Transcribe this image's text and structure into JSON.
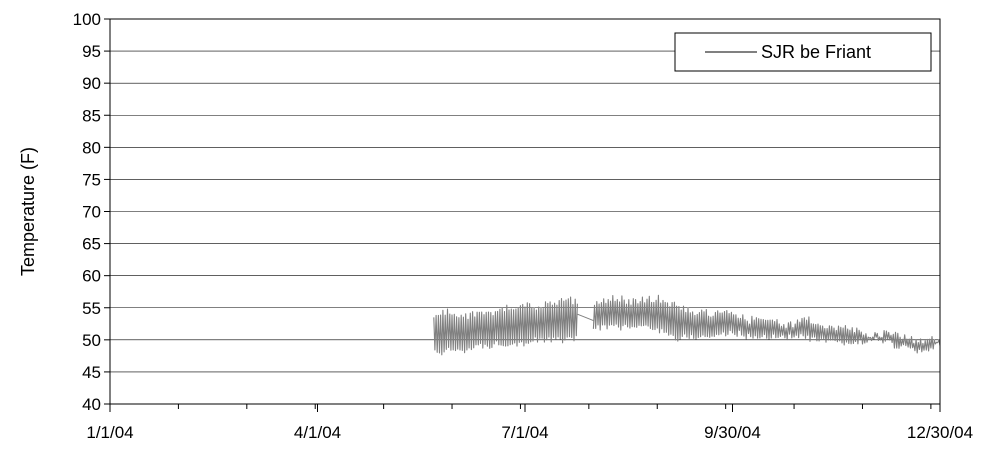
{
  "chart_data": {
    "type": "line",
    "title": "",
    "xlabel": "",
    "ylabel": "Temperature (F)",
    "ylim": [
      40,
      100
    ],
    "yticks": [
      40,
      45,
      50,
      55,
      60,
      65,
      70,
      75,
      80,
      85,
      90,
      95,
      100
    ],
    "xlim": [
      "2004-01-01",
      "2004-12-30"
    ],
    "xtick_labels": [
      "1/1/04",
      "4/1/04",
      "7/1/04",
      "9/30/04",
      "12/30/04"
    ],
    "grid": "horizontal",
    "legend_position": "top-right",
    "series_color": "#808080",
    "series": [
      {
        "name": "SJR be Friant",
        "note_kind": "daily_range",
        "x": [
          "2004-05-22",
          "2004-05-26",
          "2004-05-30",
          "2004-06-03",
          "2004-06-07",
          "2004-06-11",
          "2004-06-15",
          "2004-06-19",
          "2004-06-23",
          "2004-06-27",
          "2004-07-01",
          "2004-07-05",
          "2004-07-09",
          "2004-07-13",
          "2004-07-17",
          "2004-07-21",
          "2004-07-24",
          "2004-07-31",
          "2004-08-04",
          "2004-08-08",
          "2004-08-12",
          "2004-08-16",
          "2004-08-20",
          "2004-08-24",
          "2004-08-28",
          "2004-09-01",
          "2004-09-05",
          "2004-09-09",
          "2004-09-13",
          "2004-09-17",
          "2004-09-21",
          "2004-09-25",
          "2004-09-29",
          "2004-10-03",
          "2004-10-07",
          "2004-10-11",
          "2004-10-15",
          "2004-10-19",
          "2004-10-23",
          "2004-10-27",
          "2004-10-31",
          "2004-11-04",
          "2004-11-08",
          "2004-11-12",
          "2004-11-16",
          "2004-11-20",
          "2004-11-24",
          "2004-11-28",
          "2004-12-02",
          "2004-12-06",
          "2004-12-10",
          "2004-12-14",
          "2004-12-18",
          "2004-12-22",
          "2004-12-26",
          "2004-12-30"
        ],
        "min": [
          47.5,
          47.5,
          48,
          48,
          48,
          48.5,
          48.5,
          49,
          49,
          49,
          49,
          49.5,
          49.5,
          49.5,
          49.5,
          49.5,
          50,
          51.5,
          51.5,
          51.5,
          51.5,
          51.5,
          51.5,
          51.5,
          51,
          51,
          49.5,
          50,
          50,
          50,
          50,
          50.5,
          50.5,
          50.5,
          50,
          50,
          50,
          50,
          50,
          50,
          50,
          49.5,
          49.5,
          49,
          49,
          49,
          49,
          49.5,
          49.5,
          49.5,
          48.5,
          48.5,
          48,
          47.5,
          48,
          49
        ],
        "max": [
          53.5,
          55,
          55,
          54,
          54.5,
          55,
          54.5,
          55,
          55.5,
          55,
          56,
          55.5,
          56,
          56,
          56.5,
          57,
          56,
          56.5,
          56.5,
          57,
          57,
          56.5,
          56.5,
          57,
          57,
          56.5,
          56,
          55.5,
          55,
          55,
          54.5,
          55,
          55,
          54.5,
          53.5,
          54,
          53.5,
          53.5,
          53,
          53,
          54,
          53.5,
          53,
          52.5,
          52.5,
          52.5,
          52,
          51.5,
          51.5,
          51.5,
          51.5,
          51,
          50.5,
          50.5,
          50.5,
          51
        ]
      }
    ]
  }
}
